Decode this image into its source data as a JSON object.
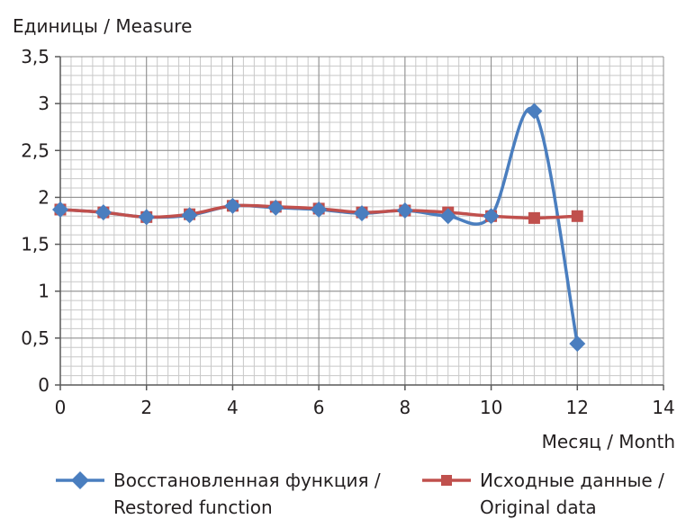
{
  "chart_data": {
    "type": "line",
    "ylabel": "Единицы / Measure",
    "xlabel": "Месяц / Month",
    "xlim": [
      0,
      14
    ],
    "ylim": [
      0,
      3.5
    ],
    "x_ticks": [
      0,
      2,
      4,
      6,
      8,
      10,
      12,
      14
    ],
    "x_tick_labels": [
      "0",
      "2",
      "4",
      "6",
      "8",
      "10",
      "12",
      "14"
    ],
    "y_ticks": [
      0,
      0.5,
      1,
      1.5,
      2,
      2.5,
      3,
      3.5
    ],
    "y_tick_labels": [
      "0",
      "0,5",
      "1",
      "1,5",
      "2",
      "2,5",
      "3",
      "3,5"
    ],
    "grid": true,
    "legend_position": "bottom",
    "series": [
      {
        "name": "Восстановленная функция / Restored function",
        "legend_lines": [
          "Восстановленная функция /",
          "Restored function"
        ],
        "color": "#4a7ebf",
        "marker": "diamond",
        "smooth": true,
        "x": [
          0,
          1,
          2,
          3,
          4,
          5,
          6,
          7,
          8,
          9,
          10,
          11,
          12
        ],
        "y": [
          1.87,
          1.84,
          1.79,
          1.81,
          1.91,
          1.89,
          1.87,
          1.83,
          1.86,
          1.8,
          1.8,
          2.92,
          0.44
        ]
      },
      {
        "name": "Исходные данные / Original data",
        "legend_lines": [
          "Исходные данные /",
          "Original data"
        ],
        "color": "#c0504d",
        "marker": "square",
        "smooth": true,
        "x": [
          0,
          1,
          2,
          3,
          4,
          5,
          6,
          7,
          8,
          9,
          10,
          11,
          12
        ],
        "y": [
          1.87,
          1.84,
          1.79,
          1.82,
          1.91,
          1.9,
          1.88,
          1.84,
          1.86,
          1.84,
          1.8,
          1.78,
          1.8
        ]
      }
    ]
  }
}
